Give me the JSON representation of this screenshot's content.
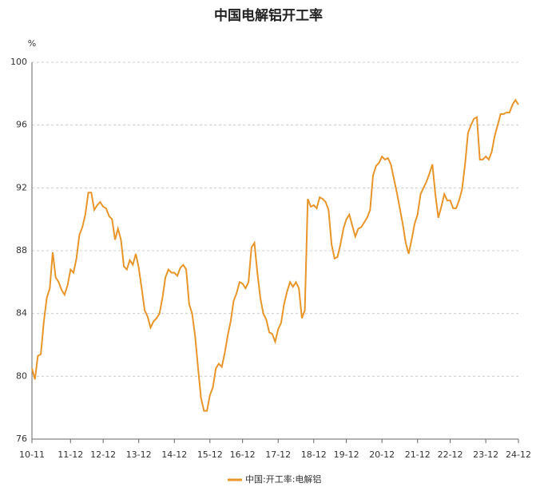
{
  "chart_data": {
    "type": "line",
    "title": "中国电解铝开工率",
    "y_unit": "%",
    "ylim": [
      76,
      100
    ],
    "yticks": [
      76,
      80,
      84,
      88,
      92,
      96,
      100
    ],
    "grid": true,
    "legend": "bottom",
    "categories": [
      "10-11",
      null,
      null,
      null,
      null,
      null,
      null,
      null,
      null,
      null,
      null,
      null,
      null,
      "11-12",
      null,
      null,
      null,
      null,
      null,
      null,
      null,
      null,
      null,
      null,
      "12-12",
      null,
      null,
      null,
      null,
      null,
      null,
      null,
      null,
      null,
      null,
      null,
      "13-12",
      null,
      null,
      null,
      null,
      null,
      null,
      null,
      null,
      null,
      null,
      null,
      "14-12",
      null,
      null,
      null,
      null,
      null,
      null,
      null,
      null,
      null,
      null,
      null,
      "15-12",
      null,
      null,
      null,
      null,
      null,
      null,
      null,
      null,
      null,
      null,
      "16-12",
      null,
      null,
      null,
      null,
      null,
      null,
      null,
      null,
      null,
      null,
      null,
      "17-12",
      null,
      null,
      null,
      null,
      null,
      null,
      null,
      null,
      null,
      null,
      null,
      "18-12",
      null,
      null,
      null,
      null,
      null,
      null,
      null,
      null,
      null,
      null,
      "19-12",
      null,
      null,
      null,
      null,
      null,
      null,
      null,
      null,
      null,
      null,
      null,
      "20-12",
      null,
      null,
      null,
      null,
      null,
      null,
      null,
      null,
      null,
      null,
      null,
      "21-12",
      null,
      null,
      null,
      null,
      null,
      null,
      null,
      null,
      null,
      null,
      "22-12",
      null,
      null,
      null,
      null,
      null,
      null,
      null,
      null,
      null,
      null,
      null,
      "23-12",
      null,
      null,
      null,
      null,
      null,
      null,
      null,
      null,
      null,
      null,
      "24-12"
    ],
    "series": [
      {
        "name": "中国:开工率:电解铝",
        "color": "#e8952a",
        "values": [
          80.5,
          79.8,
          81.3,
          81.4,
          83.5,
          85,
          85.6,
          87.9,
          86.3,
          86,
          85.5,
          85.2,
          85.8,
          86.8,
          86.6,
          87.5,
          89,
          89.5,
          90.3,
          91.7,
          91.7,
          90.6,
          90.9,
          91.1,
          90.8,
          90.7,
          90.2,
          90.0,
          88.7,
          89.4,
          88.7,
          87,
          86.8,
          87.4,
          87.1,
          87.8,
          86.9,
          85.6,
          84.2,
          83.8,
          83.1,
          83.5,
          83.7,
          84,
          85,
          86.3,
          86.8,
          86.6,
          86.6,
          86.4,
          86.9,
          87.1,
          86.8,
          84.6,
          84,
          82.6,
          80.5,
          78.6,
          77.8,
          77.8,
          78.8,
          79.3,
          80.5,
          80.8,
          80.6,
          81.5,
          82.6,
          83.5,
          84.8,
          85.3,
          86,
          85.9,
          85.6,
          86,
          88.2,
          88.5,
          86.6,
          85,
          84,
          83.6,
          82.8,
          82.7,
          82.2,
          83,
          83.4,
          84.6,
          85.4,
          86,
          85.7,
          86,
          85.6,
          83.7,
          84.2,
          91.3,
          90.8,
          90.9,
          90.7,
          91.4,
          91.3,
          91.1,
          90.6,
          88.4,
          87.5,
          87.6,
          88.4,
          89.4,
          90,
          90.3,
          89.6,
          88.9,
          89.4,
          89.5,
          89.8,
          90.1,
          90.6,
          92.8,
          93.4,
          93.6,
          94,
          93.8,
          93.9,
          93.5,
          92.6,
          91.7,
          90.7,
          89.7,
          88.5,
          87.8,
          88.7,
          89.7,
          90.3,
          91.6,
          92,
          92.4,
          92.9,
          93.5,
          91.6,
          90.1,
          90.8,
          91.6,
          91.2,
          91.2,
          90.7,
          90.7,
          91.2,
          91.9,
          93.5,
          95.5,
          96,
          96.4,
          96.5,
          93.8,
          93.8,
          94,
          93.8,
          94.3,
          95.3,
          96,
          96.7,
          96.7,
          96.8,
          96.8,
          97.3,
          97.6,
          97.3
        ]
      }
    ]
  }
}
